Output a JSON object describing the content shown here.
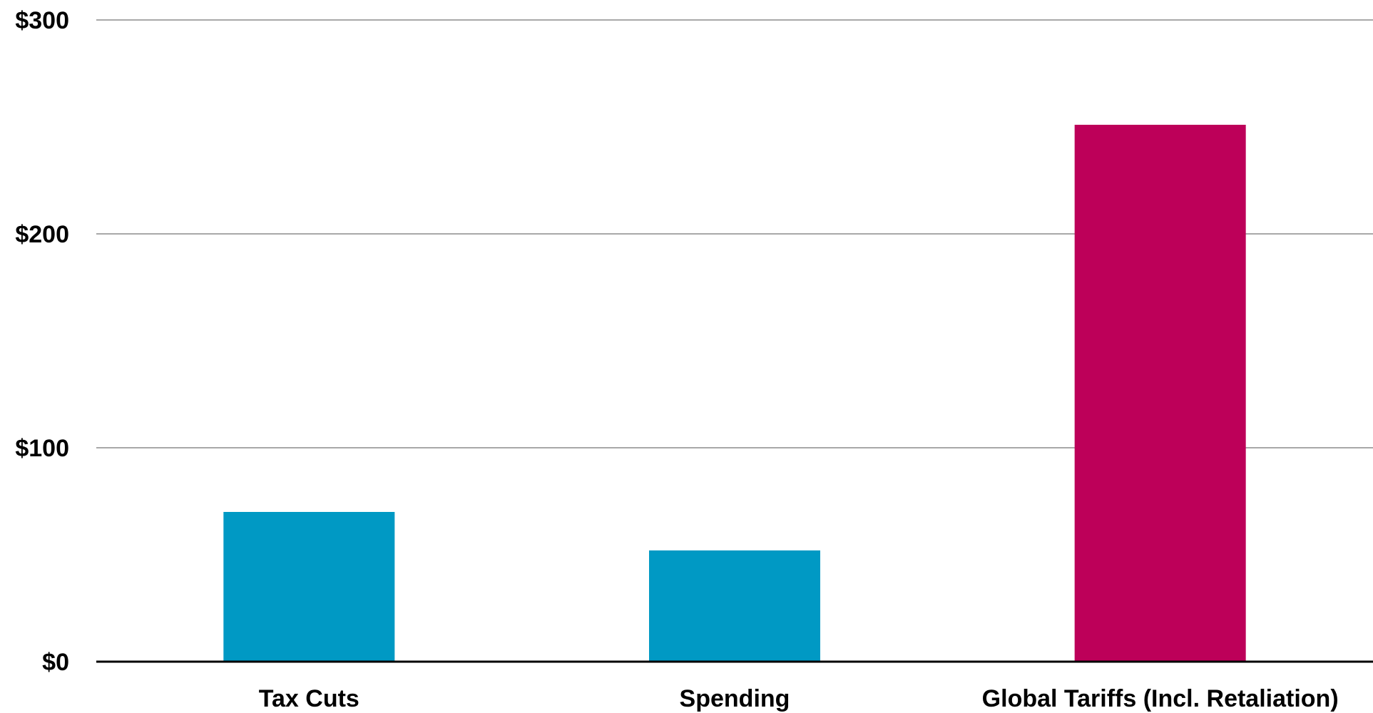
{
  "chart_data": {
    "type": "bar",
    "categories": [
      "Tax Cuts",
      "Spending",
      "Global Tariffs (Incl. Retaliation)"
    ],
    "values": [
      70,
      52,
      251
    ],
    "bar_colors": [
      "#0099c4",
      "#0099c4",
      "#bd0059"
    ],
    "ylim": [
      0,
      300
    ],
    "yticks": [
      0,
      100,
      200,
      300
    ],
    "ytick_labels": [
      "$0",
      "$100",
      "$200",
      "$300"
    ],
    "title": "",
    "xlabel": "",
    "ylabel": "",
    "grid": true,
    "gridline_color": "#8c8c8c",
    "axis_color": "#000000"
  }
}
